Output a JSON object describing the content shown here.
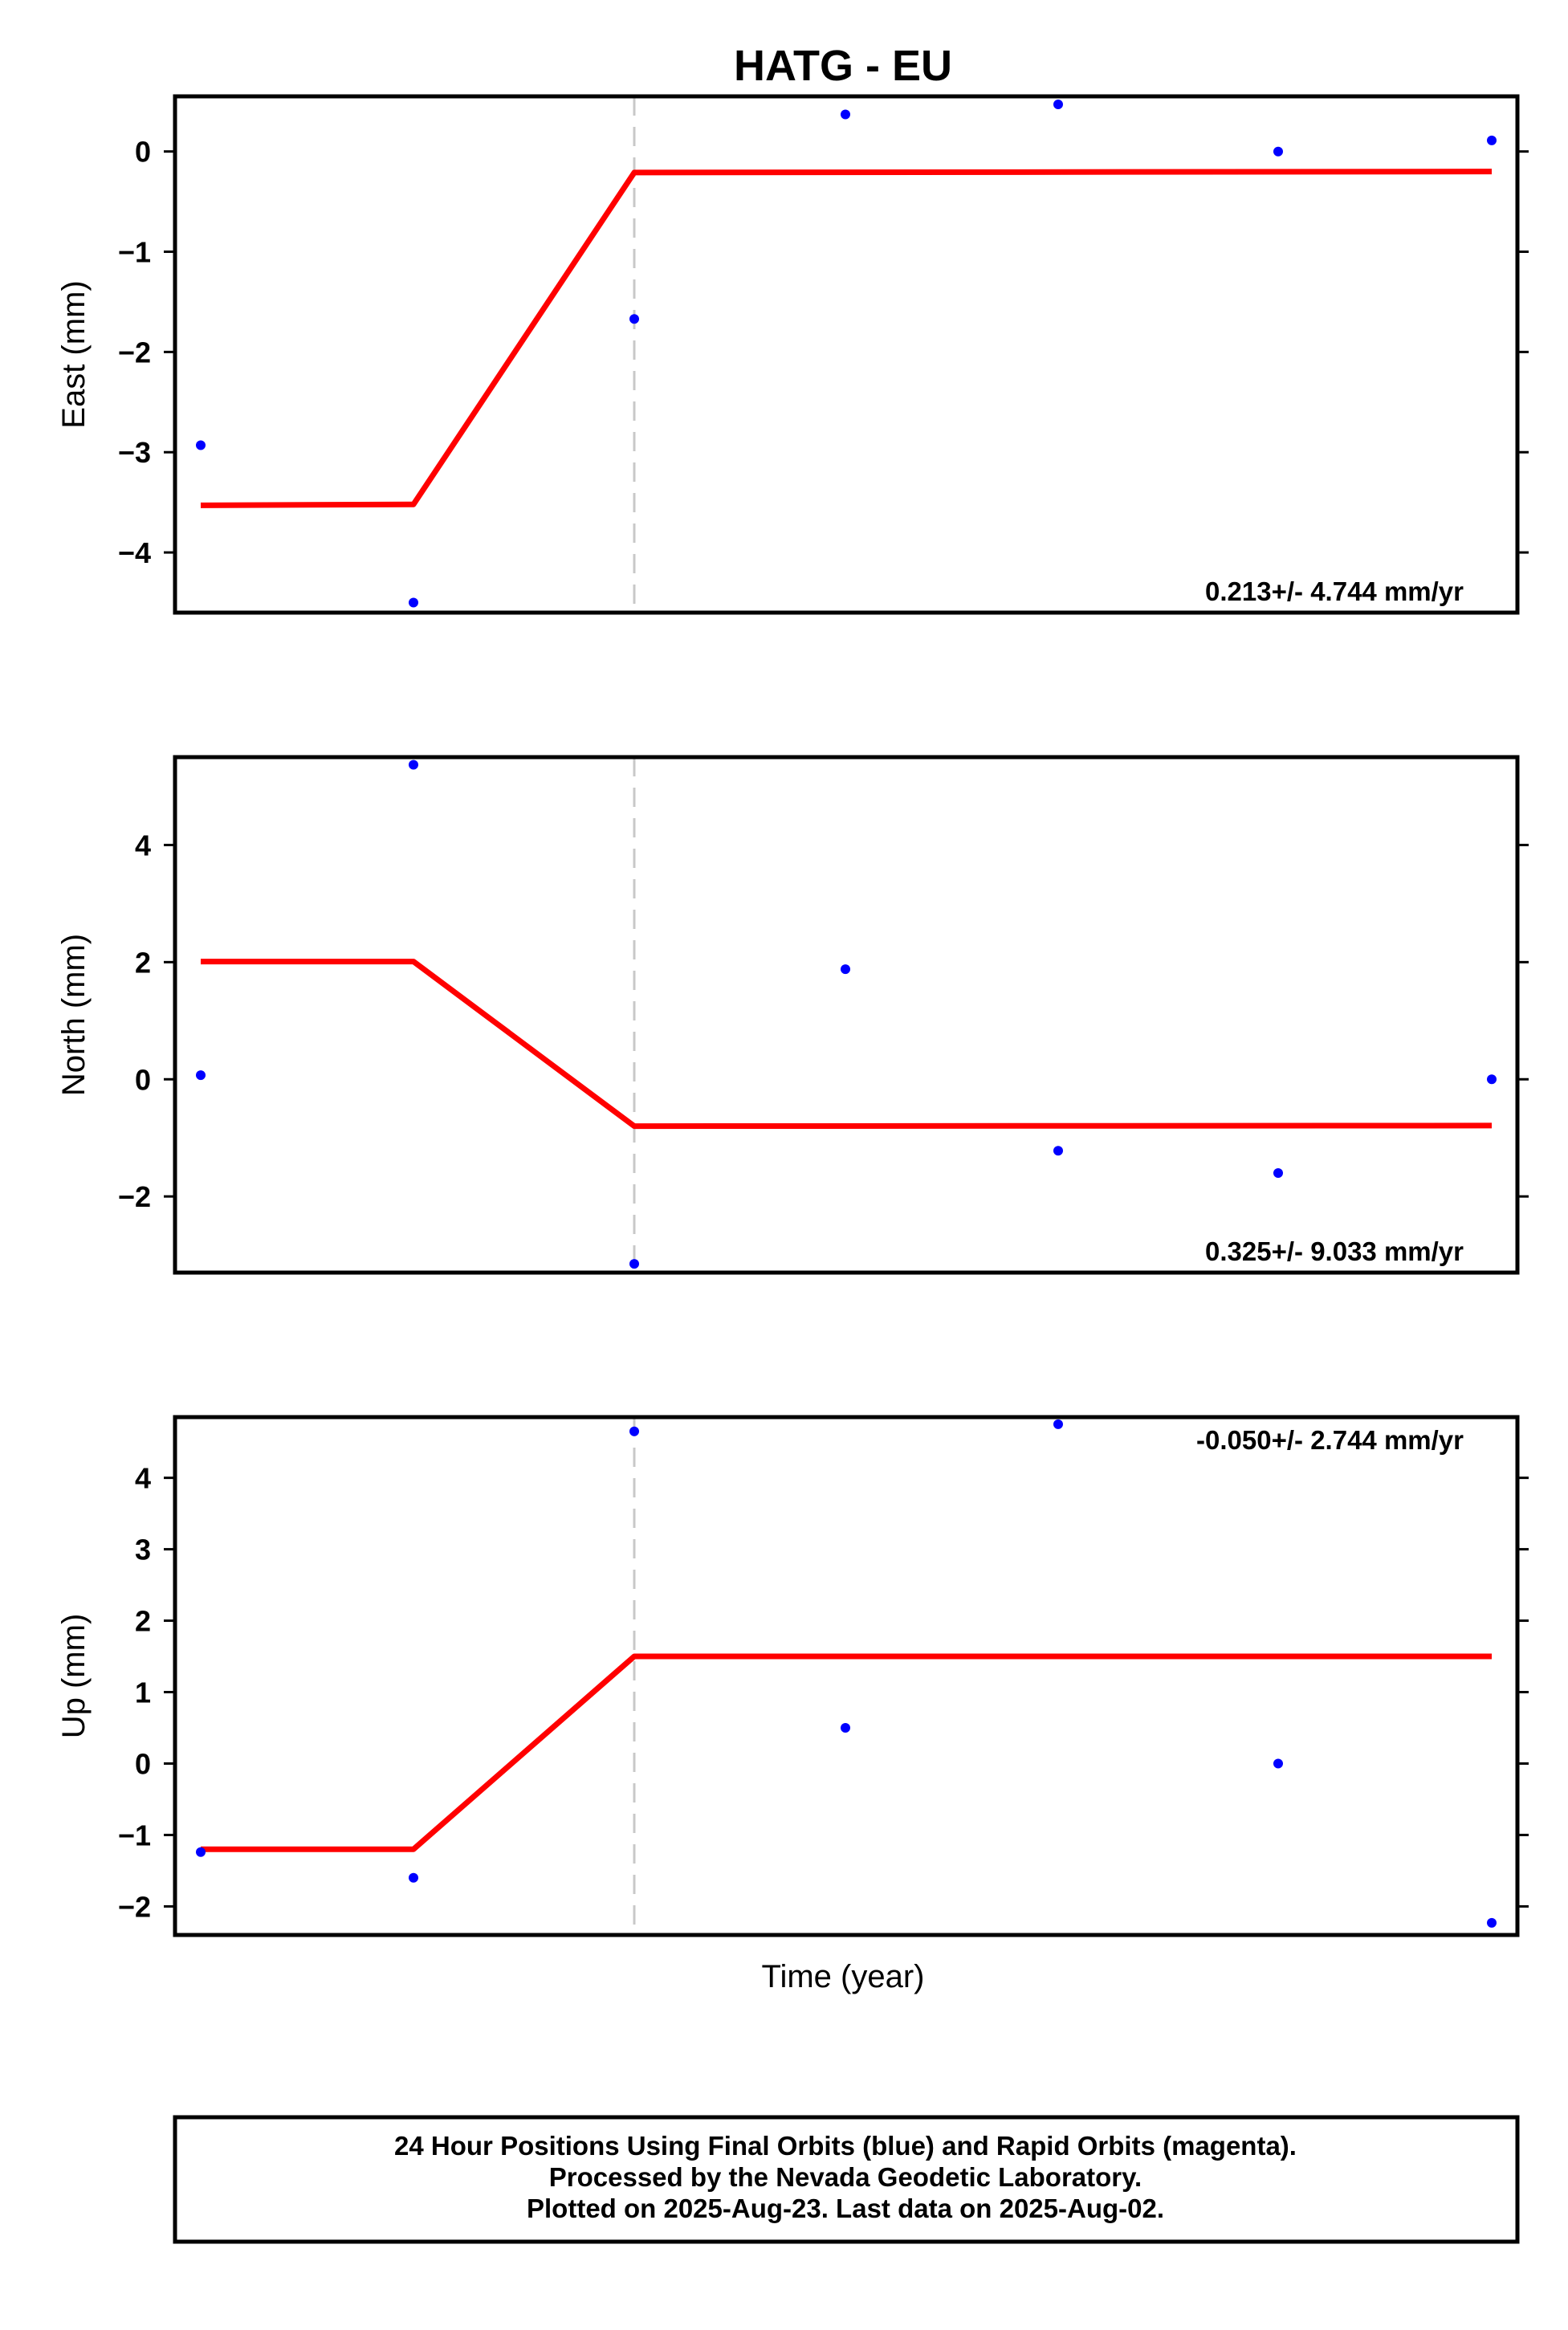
{
  "chart_data": {
    "type": "scatter",
    "title": "HATG - EU",
    "xlabel": "Time (year)",
    "colors": {
      "points": "#0000ff",
      "fit": "#ff0000",
      "event": "#c8c8c8"
    },
    "panels": [
      {
        "ylabel": "East (mm)",
        "ylim": [
          -4.6,
          0.55
        ],
        "yticks": [
          0,
          -1,
          -2,
          -3,
          -4
        ],
        "ytick_labels": [
          "0",
          "−1",
          "−2",
          "−3",
          "−4"
        ],
        "rate": "0.213+/- 4.744 mm/yr",
        "points": [
          [
            0,
            -2.93
          ],
          [
            1,
            -4.5
          ],
          [
            2,
            -1.67
          ],
          [
            3,
            0.37
          ],
          [
            4,
            0.47
          ],
          [
            5,
            0.0
          ],
          [
            6,
            0.11
          ]
        ],
        "fit": [
          [
            0,
            -3.53
          ],
          [
            1,
            -3.52
          ],
          [
            2,
            -0.21
          ],
          [
            6,
            -0.2
          ]
        ]
      },
      {
        "ylabel": "North (mm)",
        "ylim": [
          -3.3,
          5.5
        ],
        "yticks": [
          4,
          2,
          0,
          -2
        ],
        "ytick_labels": [
          "4",
          "2",
          "0",
          "−2"
        ],
        "rate": "0.325+/- 9.033 mm/yr",
        "points": [
          [
            0,
            0.07
          ],
          [
            1,
            5.37
          ],
          [
            2,
            -3.15
          ],
          [
            3,
            1.88
          ],
          [
            4,
            -1.22
          ],
          [
            5,
            -1.6
          ],
          [
            6,
            0.0
          ]
        ],
        "fit": [
          [
            0,
            2.01
          ],
          [
            1,
            2.01
          ],
          [
            2,
            -0.8
          ],
          [
            6,
            -0.79
          ]
        ]
      },
      {
        "ylabel": "Up (mm)",
        "ylim": [
          -2.4,
          4.85
        ],
        "yticks": [
          4,
          3,
          2,
          1,
          0,
          -1,
          -2
        ],
        "ytick_labels": [
          "4",
          "3",
          "2",
          "1",
          "0",
          "−1",
          "−2"
        ],
        "rate": "-0.050+/- 2.744 mm/yr",
        "points": [
          [
            0,
            -1.24
          ],
          [
            1,
            -1.6
          ],
          [
            2,
            4.65
          ],
          [
            3,
            0.5
          ],
          [
            4,
            4.75
          ],
          [
            5,
            0.0
          ],
          [
            6,
            -2.23
          ]
        ],
        "fit": [
          [
            0,
            -1.2
          ],
          [
            1,
            -1.2
          ],
          [
            2,
            1.5
          ],
          [
            6,
            1.5
          ]
        ]
      }
    ],
    "event_x": 2,
    "footer": [
      "24 Hour Positions Using Final Orbits (blue) and Rapid Orbits (magenta).",
      "Processed by the Nevada Geodetic Laboratory.",
      "Plotted on 2025-Aug-23. Last data on 2025-Aug-02."
    ]
  }
}
